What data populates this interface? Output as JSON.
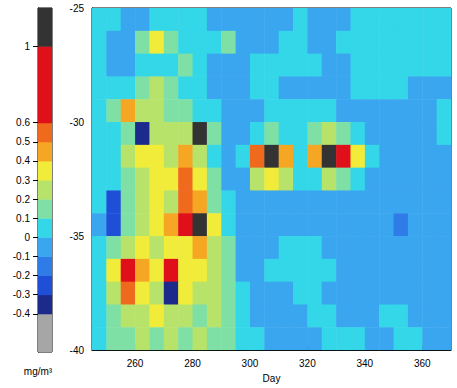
{
  "chart_data": {
    "type": "heatmap",
    "x_label": "Day",
    "xlim": [
      245,
      370
    ],
    "xticks": [
      260,
      280,
      300,
      320,
      340,
      360
    ],
    "ylim": [
      -40,
      -25
    ],
    "yticks": [
      -25,
      -30,
      -35,
      -40
    ],
    "grid": false,
    "x_edges": [
      245,
      250,
      255,
      260,
      265,
      270,
      275,
      280,
      285,
      290,
      295,
      300,
      305,
      310,
      315,
      320,
      325,
      330,
      335,
      340,
      345,
      350,
      355,
      360,
      365,
      370
    ],
    "y_edges": [
      -25,
      -26,
      -27,
      -28,
      -29,
      -30,
      -31,
      -32,
      -33,
      -34,
      -35,
      -36,
      -37,
      -38,
      -39,
      -40
    ],
    "cells": [
      [
        0.05,
        0.05,
        -0.05,
        -0.05,
        0.05,
        0.05,
        0.05,
        0.05,
        -0.05,
        -0.05,
        -0.05,
        -0.05,
        -0.05,
        -0.05,
        0.05,
        -0.05,
        -0.05,
        -0.05,
        0.05,
        0.05,
        0.05,
        0.05,
        0.05,
        0.05,
        0.05
      ],
      [
        0.05,
        -0.05,
        -0.05,
        0.1,
        0.3,
        0.15,
        0.05,
        0.05,
        0.05,
        0.15,
        -0.05,
        -0.05,
        -0.05,
        0.05,
        0.05,
        -0.05,
        -0.05,
        0.05,
        0.05,
        0.05,
        0.05,
        0.05,
        0.05,
        0.05,
        0.05
      ],
      [
        0.05,
        -0.05,
        -0.05,
        0.05,
        0.05,
        0.05,
        0.1,
        0.05,
        -0.05,
        -0.05,
        -0.05,
        0.05,
        0.05,
        0.05,
        0.05,
        0.05,
        -0.05,
        -0.05,
        0.05,
        0.05,
        0.05,
        0.05,
        0.05,
        0.05,
        0.05
      ],
      [
        0.05,
        0.05,
        0.05,
        0.15,
        0.2,
        0.15,
        0.05,
        0.05,
        -0.05,
        -0.05,
        -0.05,
        0.05,
        0.05,
        -0.05,
        -0.05,
        -0.05,
        -0.05,
        -0.05,
        0.05,
        0.05,
        0.05,
        0.05,
        -0.05,
        -0.05,
        -0.05
      ],
      [
        0.05,
        0.1,
        0.45,
        0.2,
        0.25,
        0.15,
        0.1,
        0.05,
        0.05,
        -0.05,
        -0.05,
        -0.05,
        0.05,
        0.05,
        0.05,
        0.05,
        0.05,
        -0.05,
        -0.05,
        -0.05,
        -0.05,
        -0.05,
        -0.05,
        -0.05,
        0.05
      ],
      [
        0.05,
        0.05,
        0.15,
        -0.35,
        0.2,
        0.2,
        0.25,
        1.1,
        0.1,
        -0.05,
        -0.05,
        0.05,
        0.15,
        0.05,
        0.05,
        0.15,
        0.25,
        0.15,
        0.05,
        -0.05,
        -0.05,
        -0.05,
        -0.05,
        -0.05,
        0.05
      ],
      [
        0.05,
        0.05,
        0.2,
        0.35,
        0.3,
        0.25,
        0.4,
        0.2,
        0.05,
        -0.05,
        0.05,
        0.55,
        1.1,
        0.4,
        0.05,
        0.45,
        1.1,
        0.8,
        0.3,
        0.05,
        -0.05,
        -0.05,
        -0.05,
        -0.05,
        -0.05
      ],
      [
        0.05,
        0.05,
        0.1,
        0.25,
        0.35,
        0.3,
        0.5,
        0.3,
        0.1,
        -0.05,
        -0.05,
        0.25,
        0.35,
        0.2,
        0.05,
        0.05,
        0.2,
        0.15,
        0.05,
        -0.05,
        -0.05,
        -0.05,
        -0.05,
        -0.05,
        -0.05
      ],
      [
        0.05,
        -0.25,
        0.15,
        0.2,
        0.3,
        0.25,
        0.55,
        0.45,
        0.15,
        0.05,
        -0.05,
        -0.05,
        -0.05,
        -0.05,
        -0.05,
        -0.05,
        -0.05,
        -0.05,
        -0.05,
        -0.05,
        -0.05,
        -0.05,
        -0.05,
        -0.05,
        -0.05
      ],
      [
        -0.05,
        -0.3,
        0.1,
        0.25,
        0.3,
        0.4,
        0.6,
        1.1,
        0.3,
        0.05,
        -0.05,
        -0.05,
        -0.05,
        -0.05,
        -0.05,
        -0.05,
        -0.05,
        -0.05,
        -0.05,
        -0.05,
        -0.05,
        -0.15,
        -0.05,
        -0.05,
        -0.05
      ],
      [
        0.05,
        0.1,
        0.25,
        0.3,
        0.2,
        0.3,
        0.35,
        0.4,
        0.25,
        0.1,
        -0.05,
        -0.05,
        -0.05,
        0.05,
        0.05,
        0.05,
        -0.05,
        -0.05,
        -0.05,
        -0.05,
        -0.05,
        -0.05,
        -0.05,
        -0.05,
        -0.05
      ],
      [
        0.05,
        0.3,
        0.8,
        0.45,
        0.3,
        0.8,
        0.35,
        0.3,
        0.25,
        0.1,
        -0.05,
        -0.05,
        0.05,
        0.05,
        0.05,
        0.05,
        0.05,
        -0.05,
        -0.05,
        -0.05,
        -0.05,
        -0.05,
        -0.05,
        -0.05,
        -0.05
      ],
      [
        0.05,
        0.25,
        0.55,
        0.3,
        0.25,
        -0.35,
        0.3,
        0.25,
        0.2,
        0.15,
        0.05,
        -0.05,
        -0.05,
        -0.05,
        0.05,
        0.05,
        -0.05,
        -0.05,
        -0.05,
        -0.05,
        -0.05,
        -0.05,
        -0.05,
        -0.05,
        -0.05
      ],
      [
        0.05,
        0.15,
        0.25,
        0.2,
        0.3,
        0.25,
        0.2,
        0.15,
        0.2,
        0.15,
        0.05,
        -0.05,
        -0.05,
        -0.05,
        -0.05,
        0.05,
        0.05,
        -0.05,
        -0.05,
        -0.05,
        0.05,
        0.05,
        -0.05,
        -0.05,
        -0.05
      ],
      [
        0.05,
        0.1,
        0.15,
        0.2,
        0.15,
        0.2,
        0.15,
        0.2,
        0.15,
        0.1,
        0.05,
        0.05,
        -0.05,
        -0.05,
        -0.05,
        -0.05,
        0.05,
        0.05,
        0.05,
        -0.05,
        -0.05,
        0.05,
        0.05,
        -0.05,
        -0.05
      ]
    ],
    "colorbar": {
      "label": "mg/m³",
      "bounds": [
        -0.6,
        -0.4,
        -0.3,
        -0.2,
        -0.1,
        0,
        0.1,
        0.2,
        0.3,
        0.4,
        0.5,
        0.6,
        1,
        1.2
      ],
      "colors": [
        "#a6a6a6",
        "#1c2a8c",
        "#1f4fd6",
        "#2f7ce8",
        "#3aa6f0",
        "#33d7e8",
        "#7fe0a6",
        "#b8e36a",
        "#f1ec3a",
        "#f5a623",
        "#f06a1e",
        "#e0101a",
        "#333333"
      ],
      "ticks": [
        -0.4,
        -0.3,
        -0.2,
        -0.1,
        0,
        0.1,
        0.2,
        0.3,
        0.4,
        0.5,
        0.6,
        1
      ]
    }
  }
}
